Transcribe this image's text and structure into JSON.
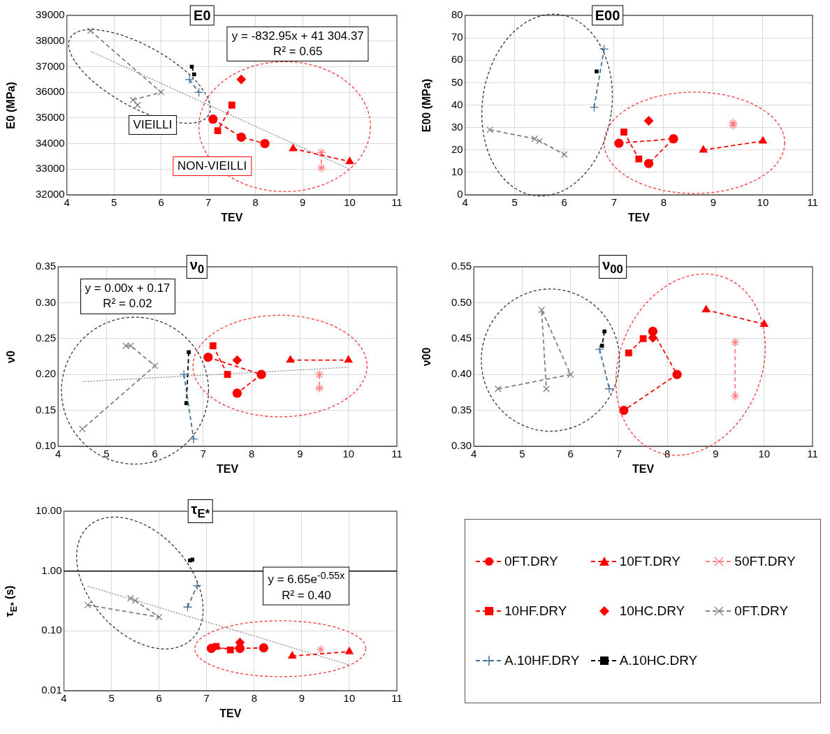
{
  "chart_data": [
    {
      "type": "line",
      "title": "E0",
      "xlabel": "TEV",
      "ylabel": "E0 (MPa)",
      "xlim": [
        4,
        11
      ],
      "xticks": [
        4,
        5,
        6,
        7,
        8,
        9,
        10,
        11
      ],
      "ylim": [
        32000,
        39000
      ],
      "yticks": [
        32000,
        33000,
        34000,
        35000,
        36000,
        37000,
        38000,
        39000
      ],
      "grid": true,
      "annotations": [
        "y = -832.95x + 41 304.37",
        "R² = 0.65",
        "VIEILLI",
        "NON-VIEILLI"
      ],
      "series": [
        {
          "x": [
            7.1,
            7.7,
            8.2
          ],
          "values": [
            34950,
            34250,
            34000
          ],
          "color": "#ff0000",
          "marker": "circle",
          "line_style": "dashed"
        },
        {
          "x": [
            8.8,
            10
          ],
          "values": [
            33800,
            33300
          ],
          "color": "#ff0000",
          "marker": "triangle",
          "line_style": "dashed"
        },
        {
          "x": [
            9.4,
            9.4
          ],
          "values": [
            33650,
            33050
          ],
          "color": "#ff8080",
          "marker": "cross",
          "line_style": "dashed"
        },
        {
          "x": [
            7.5,
            7.2
          ],
          "values": [
            35500,
            34500
          ],
          "color": "#ff0000",
          "marker": "square",
          "line_style": "dashed"
        },
        {
          "type": "scatter",
          "x": [
            7.7
          ],
          "values": [
            36500
          ],
          "color": "#ff0000",
          "marker": "diamond"
        },
        {
          "x": [
            4.5,
            6.0,
            5.4,
            5.5
          ],
          "values": [
            38400,
            36000,
            35700,
            35500
          ],
          "color": "#808080",
          "marker": "cross",
          "line_style": "dashed"
        },
        {
          "x": [
            6.6,
            6.8
          ],
          "values": [
            36500,
            36000
          ],
          "color": "#41719c",
          "marker": "plus",
          "line_style": "dashed"
        },
        {
          "x": [
            6.65,
            6.7
          ],
          "values": [
            37000,
            36700
          ],
          "color": "#000000",
          "marker": "square",
          "line_style": "dashed"
        },
        {
          "type": "line",
          "x": [
            4.5,
            10
          ],
          "values": [
            37600,
            33000
          ],
          "color": "#808080",
          "marker": "none",
          "line_style": "dotted"
        }
      ]
    },
    {
      "type": "line",
      "title": "E00",
      "xlabel": "TEV",
      "ylabel": "E00 (MPa)",
      "xlim": [
        4,
        11
      ],
      "xticks": [
        4,
        5,
        6,
        7,
        8,
        9,
        10,
        11
      ],
      "ylim": [
        0,
        80
      ],
      "yticks": [
        0,
        10,
        20,
        30,
        40,
        50,
        60,
        70,
        80
      ],
      "grid": true,
      "series": [
        {
          "x": [
            7.1,
            8.2,
            7.7
          ],
          "values": [
            23,
            25,
            14
          ],
          "color": "#ff0000",
          "marker": "circle",
          "line_style": "dashed"
        },
        {
          "x": [
            8.8,
            10
          ],
          "values": [
            20,
            24
          ],
          "color": "#ff0000",
          "marker": "triangle",
          "line_style": "dashed"
        },
        {
          "type": "scatter",
          "x": [
            9.4,
            9.4
          ],
          "values": [
            32,
            31
          ],
          "color": "#ff8080",
          "marker": "cross"
        },
        {
          "x": [
            7.2,
            7.5
          ],
          "values": [
            28,
            16
          ],
          "color": "#ff0000",
          "marker": "square",
          "line_style": "dashed"
        },
        {
          "type": "scatter",
          "x": [
            7.7
          ],
          "values": [
            33
          ],
          "color": "#ff0000",
          "marker": "diamond"
        },
        {
          "x": [
            4.5,
            5.4,
            5.5,
            6.0
          ],
          "values": [
            29,
            25,
            24,
            18
          ],
          "color": "#808080",
          "marker": "cross",
          "line_style": "dashed"
        },
        {
          "x": [
            6.6,
            6.8
          ],
          "values": [
            39,
            65
          ],
          "color": "#41719c",
          "marker": "plus",
          "line_style": "dashed"
        },
        {
          "x": [
            6.65
          ],
          "values": [
            55
          ],
          "color": "#000000",
          "marker": "square",
          "line_style": "dashed"
        }
      ]
    },
    {
      "type": "line",
      "title": "ν$_{0}$",
      "xlabel": "TEV",
      "ylabel": "ν0",
      "xlim": [
        4,
        11
      ],
      "xticks": [
        4,
        5,
        6,
        7,
        8,
        9,
        10,
        11
      ],
      "ylim": [
        0.1,
        0.35
      ],
      "yticks": [
        {
          "value": 0.1,
          "label": "0.10"
        },
        {
          "value": 0.15,
          "label": "0.15"
        },
        {
          "value": 0.2,
          "label": "0.20"
        },
        {
          "value": 0.25,
          "label": "0.25"
        },
        {
          "value": 0.3,
          "label": "0.30"
        },
        {
          "value": 0.35,
          "label": "0.35"
        }
      ],
      "grid": true,
      "annotations": [
        "y = 0.00x + 0.17",
        "R² = 0.02"
      ],
      "series": [
        {
          "x": [
            7.1,
            8.2,
            7.7
          ],
          "values": [
            0.224,
            0.2,
            0.174
          ],
          "color": "#ff0000",
          "marker": "circle",
          "line_style": "dashed"
        },
        {
          "x": [
            8.8,
            10
          ],
          "values": [
            0.22,
            0.22
          ],
          "color": "#ff0000",
          "marker": "triangle",
          "line_style": "dashed"
        },
        {
          "x": [
            9.4,
            9.4
          ],
          "values": [
            0.2,
            0.181
          ],
          "color": "#ff8080",
          "marker": "cross",
          "line_style": "dashed"
        },
        {
          "x": [
            7.2,
            7.5
          ],
          "values": [
            0.24,
            0.2
          ],
          "color": "#ff0000",
          "marker": "square",
          "line_style": "dashed"
        },
        {
          "type": "scatter",
          "x": [
            7.7
          ],
          "values": [
            0.22
          ],
          "color": "#ff0000",
          "marker": "diamond"
        },
        {
          "x": [
            5.4,
            5.5,
            6.0,
            4.5
          ],
          "values": [
            0.24,
            0.24,
            0.212,
            0.124
          ],
          "color": "#808080",
          "marker": "cross",
          "line_style": "dashed"
        },
        {
          "x": [
            6.6,
            6.8
          ],
          "values": [
            0.2,
            0.11
          ],
          "color": "#41719c",
          "marker": "plus",
          "line_style": "dashed"
        },
        {
          "x": [
            6.7,
            6.65
          ],
          "values": [
            0.231,
            0.16
          ],
          "color": "#000000",
          "marker": "square",
          "line_style": "dashed"
        },
        {
          "type": "line",
          "x": [
            4.5,
            10
          ],
          "values": [
            0.19,
            0.21
          ],
          "color": "#808080",
          "marker": "none",
          "line_style": "dotted"
        }
      ]
    },
    {
      "type": "line",
      "title": "ν$_{00}$",
      "xlabel": "TEV",
      "ylabel": "ν00",
      "xlim": [
        4,
        11
      ],
      "xticks": [
        4,
        5,
        6,
        7,
        8,
        9,
        10,
        11
      ],
      "ylim": [
        0.3,
        0.55
      ],
      "yticks": [
        {
          "value": 0.3,
          "label": "0.30"
        },
        {
          "value": 0.35,
          "label": "0.35"
        },
        {
          "value": 0.4,
          "label": "0.40"
        },
        {
          "value": 0.45,
          "label": "0.45"
        },
        {
          "value": 0.5,
          "label": "0.50"
        },
        {
          "value": 0.55,
          "label": "0.55"
        }
      ],
      "grid": true,
      "series": [
        {
          "x": [
            7.7,
            8.2,
            7.1
          ],
          "values": [
            0.46,
            0.4,
            0.35
          ],
          "color": "#ff0000",
          "marker": "circle",
          "line_style": "dashed"
        },
        {
          "x": [
            8.8,
            10
          ],
          "values": [
            0.49,
            0.47
          ],
          "color": "#ff0000",
          "marker": "triangle",
          "line_style": "dashed"
        },
        {
          "x": [
            9.4,
            9.4
          ],
          "values": [
            0.445,
            0.37
          ],
          "color": "#ff8080",
          "marker": "cross",
          "line_style": "dashed"
        },
        {
          "x": [
            7.2,
            7.5
          ],
          "values": [
            0.43,
            0.45
          ],
          "color": "#ff0000",
          "marker": "square",
          "line_style": "dashed"
        },
        {
          "type": "scatter",
          "x": [
            7.7
          ],
          "values": [
            0.451
          ],
          "color": "#ff0000",
          "marker": "diamond"
        },
        {
          "x": [
            4.5,
            6.0,
            5.4,
            5.5
          ],
          "values": [
            0.38,
            0.4,
            0.49,
            0.38
          ],
          "color": "#808080",
          "marker": "cross",
          "line_style": "dashed"
        },
        {
          "x": [
            6.6,
            6.8
          ],
          "values": [
            0.435,
            0.38
          ],
          "color": "#41719c",
          "marker": "plus",
          "line_style": "dashed"
        },
        {
          "x": [
            6.7,
            6.65
          ],
          "values": [
            0.46,
            0.44
          ],
          "color": "#000000",
          "marker": "square",
          "line_style": "dashed"
        }
      ]
    },
    {
      "type": "line",
      "title": "τ$_{E*}$",
      "xlabel": "TEV",
      "ylabel": "τ$_{E*}$ (s)",
      "xlim": [
        4,
        11
      ],
      "xticks": [
        4,
        5,
        6,
        7,
        8,
        9,
        10,
        11
      ],
      "log": true,
      "ylim": [
        0.01,
        10
      ],
      "yticks": [
        {
          "value": 0.01,
          "label": "0.01"
        },
        {
          "value": 0.1,
          "label": "0.10"
        },
        {
          "value": 1,
          "label": "1.00"
        },
        {
          "value": 10,
          "label": "10.00"
        }
      ],
      "grid": true,
      "legend": "right",
      "annotations": [
        "y = 6.65e$^{-0.55x}$",
        "R² = 0.40"
      ],
      "ref_lines": [
        {
          "axis": "y",
          "value": 1,
          "color": "#000000",
          "line_style": "solid"
        }
      ],
      "series": [
        {
          "name": "0FT.DRY",
          "x": [
            7.1,
            7.7,
            8.2
          ],
          "values": [
            0.051,
            0.051,
            0.052
          ],
          "color": "#ff0000",
          "marker": "circle",
          "line_style": "dashed"
        },
        {
          "name": "10FT.DRY",
          "x": [
            8.8,
            10
          ],
          "values": [
            0.038,
            0.045
          ],
          "color": "#ff0000",
          "marker": "triangle",
          "line_style": "dashed"
        },
        {
          "name": "50FT.DRY",
          "x": [
            9.4
          ],
          "values": [
            0.049
          ],
          "color": "#ff8080",
          "marker": "cross",
          "line_style": "dashed"
        },
        {
          "name": "10HF.DRY",
          "x": [
            7.2,
            7.5
          ],
          "values": [
            0.055,
            0.048
          ],
          "color": "#ff0000",
          "marker": "square",
          "line_style": "dashed"
        },
        {
          "name": "10HC.DRY",
          "type": "scatter",
          "x": [
            7.7
          ],
          "values": [
            0.064
          ],
          "color": "#ff0000",
          "marker": "diamond"
        },
        {
          "name": "0FT.DRY",
          "x": [
            4.5,
            6.0,
            5.5,
            5.4
          ],
          "values": [
            0.27,
            0.17,
            0.32,
            0.35
          ],
          "color": "#808080",
          "marker": "cross",
          "line_style": "dashed"
        },
        {
          "name": "A.10HF.DRY",
          "x": [
            6.6,
            6.8
          ],
          "values": [
            0.25,
            0.57
          ],
          "color": "#41719c",
          "marker": "plus",
          "line_style": "dashed"
        },
        {
          "name": "A.10HC.DRY",
          "type": "scatter",
          "x": [
            6.65,
            6.7
          ],
          "values": [
            1.5,
            1.55
          ],
          "color": "#000000",
          "marker": "square",
          "line_style": "dashed"
        },
        {
          "type": "line",
          "x": [
            4.5,
            5,
            6,
            7,
            8,
            9,
            10
          ],
          "values": [
            0.56,
            0.425,
            0.245,
            0.141,
            0.082,
            0.047,
            0.027
          ],
          "color": "#808080",
          "marker": "none",
          "line_style": "dotted"
        }
      ]
    }
  ]
}
